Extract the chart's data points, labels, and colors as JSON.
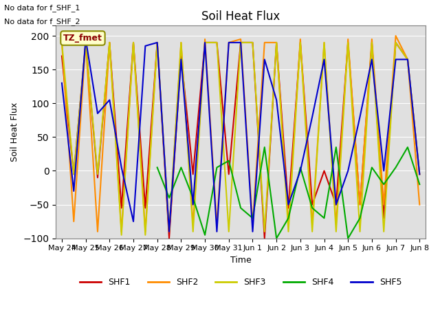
{
  "title": "Soil Heat Flux",
  "ylabel": "Soil Heat Flux",
  "xlabel": "Time",
  "ylim": [
    -100,
    215
  ],
  "yticks": [
    -100,
    -50,
    0,
    50,
    100,
    150,
    200
  ],
  "annotations": [
    "No data for f_SHF_1",
    "No data for f_SHF_2"
  ],
  "legend_box_label": "TZ_fmet",
  "series": {
    "SHF1": {
      "color": "#CC0000",
      "x": [
        0,
        1,
        2,
        3,
        4,
        5,
        6,
        7,
        8,
        9,
        10,
        11,
        12,
        13,
        14,
        15,
        16,
        17,
        18,
        19,
        20,
        21,
        22,
        23,
        24,
        25,
        26,
        27,
        28,
        29,
        30
      ],
      "y": [
        170,
        -5,
        190,
        -10,
        190,
        -55,
        190,
        -55,
        190,
        -100,
        170,
        -5,
        190,
        190,
        -5,
        190,
        190,
        -100,
        190,
        -55,
        190,
        -50,
        0,
        -50,
        190,
        -50,
        190,
        -70,
        190,
        165,
        -5
      ]
    },
    "SHF2": {
      "color": "#FF8C00",
      "x": [
        0,
        1,
        2,
        3,
        4,
        5,
        6,
        7,
        8,
        9,
        10,
        11,
        12,
        13,
        14,
        15,
        16,
        17,
        18,
        19,
        20,
        21,
        22,
        23,
        24,
        25,
        26,
        27,
        28,
        29,
        30
      ],
      "y": [
        190,
        -75,
        190,
        -90,
        190,
        -90,
        190,
        -90,
        190,
        -90,
        190,
        -80,
        195,
        -80,
        190,
        195,
        -80,
        190,
        190,
        -80,
        195,
        -80,
        190,
        -80,
        195,
        -50,
        195,
        -50,
        200,
        165,
        -50
      ]
    },
    "SHF3": {
      "color": "#CCCC00",
      "x": [
        0,
        1,
        2,
        3,
        4,
        5,
        6,
        7,
        8,
        9,
        10,
        11,
        12,
        13,
        14,
        15,
        16,
        17,
        18,
        19,
        20,
        21,
        22,
        23,
        24,
        25,
        26,
        27,
        28,
        29,
        30
      ],
      "y": [
        190,
        -5,
        190,
        -5,
        190,
        -95,
        190,
        -95,
        190,
        -90,
        190,
        -90,
        190,
        190,
        -90,
        190,
        190,
        -90,
        190,
        -90,
        190,
        -90,
        190,
        -90,
        190,
        -90,
        190,
        -90,
        190,
        165,
        -5
      ]
    },
    "SHF4": {
      "color": "#00AA00",
      "x": [
        8,
        9,
        10,
        11,
        12,
        13,
        14,
        15,
        16,
        17,
        18,
        19,
        20,
        21,
        22,
        23,
        24,
        25,
        26,
        27,
        28,
        29,
        30
      ],
      "y": [
        5,
        -40,
        5,
        -40,
        -95,
        5,
        15,
        -55,
        -70,
        35,
        -100,
        -70,
        5,
        -55,
        -70,
        35,
        -100,
        -70,
        5,
        -20,
        5,
        35,
        -20
      ]
    },
    "SHF5": {
      "color": "#0000CC",
      "x": [
        0,
        1,
        2,
        3,
        4,
        5,
        6,
        7,
        8,
        9,
        10,
        11,
        12,
        13,
        14,
        15,
        16,
        17,
        18,
        19,
        20,
        21,
        22,
        23,
        24,
        25,
        26,
        27,
        28,
        29,
        30
      ],
      "y": [
        130,
        -30,
        195,
        85,
        105,
        5,
        -75,
        185,
        190,
        -90,
        165,
        -50,
        190,
        -90,
        190,
        190,
        -90,
        165,
        105,
        -50,
        0,
        80,
        165,
        -50,
        0,
        80,
        165,
        0,
        165,
        165,
        -5
      ]
    }
  },
  "xtick_positions": [
    0,
    2,
    4,
    6,
    8,
    10,
    12,
    14,
    16,
    18,
    20,
    22,
    24,
    26,
    28,
    30
  ],
  "xtick_labels": [
    "May 24",
    "May 25",
    "May 26",
    "May 27",
    "May 28",
    "May 29",
    "May 30",
    "May 31",
    "Jun 1",
    "Jun 2",
    "Jun 3",
    "Jun 4",
    "Jun 5",
    "Jun 6",
    "Jun 7",
    "Jun 8"
  ],
  "background_color": "#E0E0E0"
}
